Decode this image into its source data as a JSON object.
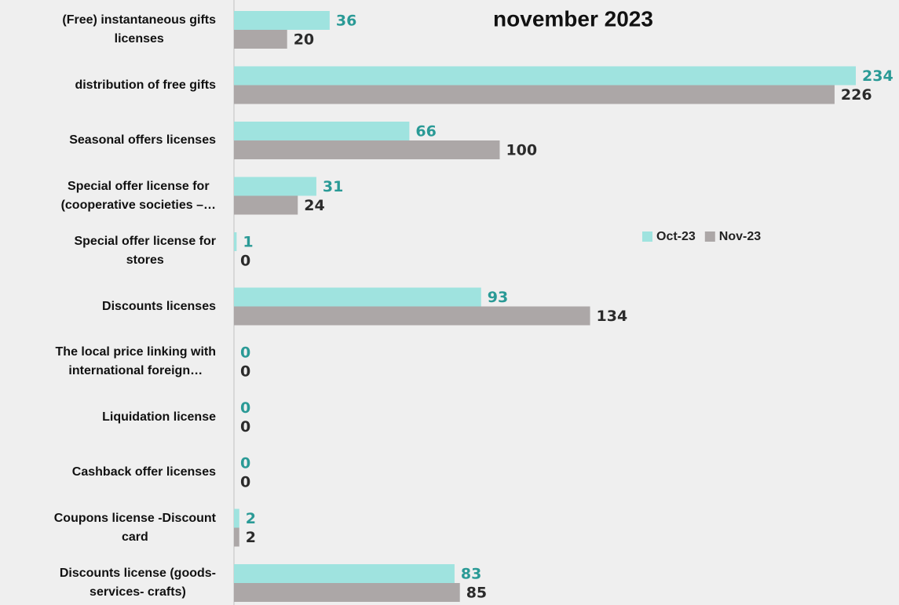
{
  "chart_data": {
    "type": "bar",
    "orientation": "horizontal",
    "title": "november 2023",
    "categories": [
      "(Free) instantaneous gifts\nlicenses",
      "distribution of free gifts",
      "Seasonal offers licenses",
      "Special offer license for\n(cooperative societies –…",
      "Special offer license for\nstores",
      "Discounts licenses",
      "The local price linking with\ninternational foreign…",
      "Liquidation license",
      "Cashback offer licenses",
      "Coupons license -Discount\ncard",
      "Discounts license (goods-\nservices- crafts)"
    ],
    "series": [
      {
        "name": "Oct-23",
        "color": "#9fe3df",
        "label_color": "#2a9a96",
        "values": [
          36,
          234,
          66,
          31,
          1,
          93,
          0,
          0,
          0,
          2,
          83
        ]
      },
      {
        "name": "Nov-23",
        "color": "#aca7a7",
        "label_color": "#2b2b2b",
        "values": [
          20,
          226,
          100,
          24,
          0,
          134,
          0,
          0,
          0,
          2,
          85
        ]
      }
    ],
    "legend": "right"
  }
}
